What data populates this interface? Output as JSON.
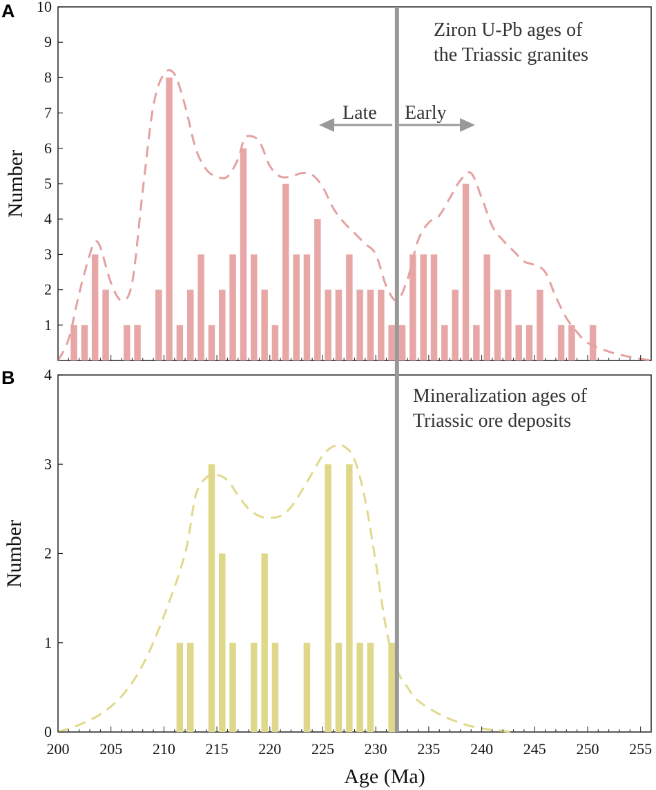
{
  "chart_data": [
    {
      "panel": "A",
      "type": "bar",
      "annotation_lines": [
        "Ziron U-Pb ages of",
        "the Triassic granites"
      ],
      "arrow_labels": {
        "left": "Late",
        "right": "Early"
      },
      "ylabel": "Number",
      "xlabel": "",
      "xlim": [
        200,
        256
      ],
      "ylim": [
        0,
        10
      ],
      "xticks": [
        200,
        205,
        210,
        215,
        220,
        225,
        230,
        235,
        240,
        245,
        250,
        255
      ],
      "yticks": [
        1,
        2,
        3,
        4,
        5,
        6,
        7,
        8,
        9,
        10
      ],
      "divider_age": 232,
      "bar_color": "#e8a7a7",
      "curve_color": "#e5a0a0",
      "bars": [
        {
          "x": 201.5,
          "value": 1
        },
        {
          "x": 202.5,
          "value": 1
        },
        {
          "x": 203.5,
          "value": 3
        },
        {
          "x": 204.5,
          "value": 2
        },
        {
          "x": 206.5,
          "value": 1
        },
        {
          "x": 207.5,
          "value": 1
        },
        {
          "x": 209.5,
          "value": 2
        },
        {
          "x": 210.5,
          "value": 8
        },
        {
          "x": 211.5,
          "value": 1
        },
        {
          "x": 212.5,
          "value": 2
        },
        {
          "x": 213.5,
          "value": 3
        },
        {
          "x": 214.5,
          "value": 1
        },
        {
          "x": 215.5,
          "value": 2
        },
        {
          "x": 216.5,
          "value": 3
        },
        {
          "x": 217.5,
          "value": 6
        },
        {
          "x": 218.5,
          "value": 3
        },
        {
          "x": 219.5,
          "value": 2
        },
        {
          "x": 220.5,
          "value": 1
        },
        {
          "x": 221.5,
          "value": 5
        },
        {
          "x": 222.5,
          "value": 3
        },
        {
          "x": 223.5,
          "value": 3
        },
        {
          "x": 224.5,
          "value": 4
        },
        {
          "x": 225.5,
          "value": 2
        },
        {
          "x": 226.5,
          "value": 2
        },
        {
          "x": 227.5,
          "value": 3
        },
        {
          "x": 228.5,
          "value": 2
        },
        {
          "x": 229.5,
          "value": 2
        },
        {
          "x": 230.5,
          "value": 2
        },
        {
          "x": 231.5,
          "value": 1
        },
        {
          "x": 232.5,
          "value": 1
        },
        {
          "x": 233.5,
          "value": 3
        },
        {
          "x": 234.5,
          "value": 3
        },
        {
          "x": 235.5,
          "value": 3
        },
        {
          "x": 236.5,
          "value": 1
        },
        {
          "x": 237.5,
          "value": 2
        },
        {
          "x": 238.5,
          "value": 5
        },
        {
          "x": 239.5,
          "value": 1
        },
        {
          "x": 240.5,
          "value": 3
        },
        {
          "x": 241.5,
          "value": 2
        },
        {
          "x": 242.5,
          "value": 2
        },
        {
          "x": 243.5,
          "value": 1
        },
        {
          "x": 244.5,
          "value": 1
        },
        {
          "x": 245.5,
          "value": 2
        },
        {
          "x": 247.5,
          "value": 1
        },
        {
          "x": 248.5,
          "value": 1
        },
        {
          "x": 250.5,
          "value": 1
        }
      ],
      "density_curve": [
        [
          200,
          0
        ],
        [
          201,
          0.6
        ],
        [
          202,
          1.9
        ],
        [
          203,
          3.0
        ],
        [
          203.5,
          3.35
        ],
        [
          204,
          3.2
        ],
        [
          205,
          2.2
        ],
        [
          206,
          1.7
        ],
        [
          207,
          2.2
        ],
        [
          208,
          4.8
        ],
        [
          209,
          7.2
        ],
        [
          210,
          8.1
        ],
        [
          211,
          8.1
        ],
        [
          212,
          7.2
        ],
        [
          213,
          6.0
        ],
        [
          214,
          5.4
        ],
        [
          215,
          5.2
        ],
        [
          216,
          5.2
        ],
        [
          217,
          5.7
        ],
        [
          217.5,
          6.2
        ],
        [
          218,
          6.35
        ],
        [
          219,
          6.2
        ],
        [
          220,
          5.5
        ],
        [
          221,
          5.2
        ],
        [
          222,
          5.2
        ],
        [
          223,
          5.3
        ],
        [
          224,
          5.25
        ],
        [
          225,
          4.9
        ],
        [
          226,
          4.3
        ],
        [
          227,
          3.9
        ],
        [
          228,
          3.6
        ],
        [
          229,
          3.3
        ],
        [
          230,
          3.0
        ],
        [
          231,
          2.1
        ],
        [
          232,
          1.7
        ],
        [
          233,
          2.3
        ],
        [
          234,
          3.4
        ],
        [
          235,
          3.9
        ],
        [
          236,
          4.1
        ],
        [
          237,
          4.6
        ],
        [
          238,
          5.1
        ],
        [
          239,
          5.3
        ],
        [
          240,
          4.6
        ],
        [
          241,
          3.8
        ],
        [
          242,
          3.4
        ],
        [
          243,
          3.1
        ],
        [
          244,
          2.8
        ],
        [
          245,
          2.7
        ],
        [
          246,
          2.5
        ],
        [
          247,
          1.8
        ],
        [
          248,
          1.2
        ],
        [
          249,
          0.8
        ],
        [
          250,
          0.5
        ],
        [
          252,
          0.25
        ],
        [
          254,
          0.1
        ],
        [
          256,
          0.0
        ]
      ]
    },
    {
      "panel": "B",
      "type": "bar",
      "annotation_lines": [
        "Mineralization ages of",
        "Triassic ore deposits"
      ],
      "ylabel": "Number",
      "xlabel": "Age (Ma)",
      "xlim": [
        200,
        256
      ],
      "ylim": [
        0,
        4
      ],
      "xticks": [
        200,
        205,
        210,
        215,
        220,
        225,
        230,
        235,
        240,
        245,
        250,
        255
      ],
      "yticks": [
        0,
        1,
        2,
        3,
        4
      ],
      "divider_age": 232,
      "bar_color": "#dfd88a",
      "curve_color": "#e0d98a",
      "bars": [
        {
          "x": 211.5,
          "value": 1
        },
        {
          "x": 212.5,
          "value": 1
        },
        {
          "x": 214.5,
          "value": 3
        },
        {
          "x": 215.5,
          "value": 2
        },
        {
          "x": 216.5,
          "value": 1
        },
        {
          "x": 218.5,
          "value": 1
        },
        {
          "x": 219.5,
          "value": 2
        },
        {
          "x": 220.5,
          "value": 1
        },
        {
          "x": 223.5,
          "value": 1
        },
        {
          "x": 225.5,
          "value": 3
        },
        {
          "x": 226.5,
          "value": 1
        },
        {
          "x": 227.5,
          "value": 3
        },
        {
          "x": 228.5,
          "value": 1
        },
        {
          "x": 229.5,
          "value": 1
        },
        {
          "x": 231.5,
          "value": 1
        }
      ],
      "density_curve": [
        [
          200,
          0
        ],
        [
          202,
          0.08
        ],
        [
          204,
          0.2
        ],
        [
          206,
          0.4
        ],
        [
          208,
          0.75
        ],
        [
          210,
          1.3
        ],
        [
          212,
          2.0
        ],
        [
          213,
          2.65
        ],
        [
          214,
          2.85
        ],
        [
          215,
          2.88
        ],
        [
          216,
          2.82
        ],
        [
          217,
          2.65
        ],
        [
          218,
          2.5
        ],
        [
          219,
          2.42
        ],
        [
          220,
          2.4
        ],
        [
          221,
          2.42
        ],
        [
          222,
          2.52
        ],
        [
          223,
          2.7
        ],
        [
          224,
          2.9
        ],
        [
          225,
          3.1
        ],
        [
          226,
          3.2
        ],
        [
          227,
          3.2
        ],
        [
          228,
          3.05
        ],
        [
          229,
          2.6
        ],
        [
          230,
          1.9
        ],
        [
          231,
          1.15
        ],
        [
          232,
          0.7
        ],
        [
          233,
          0.5
        ],
        [
          234,
          0.35
        ],
        [
          236,
          0.2
        ],
        [
          238,
          0.1
        ],
        [
          240,
          0.04
        ],
        [
          243,
          0.0
        ]
      ]
    }
  ],
  "colors": {
    "frame": "#222222",
    "divider_line": "#999999",
    "arrow": "#999999"
  }
}
